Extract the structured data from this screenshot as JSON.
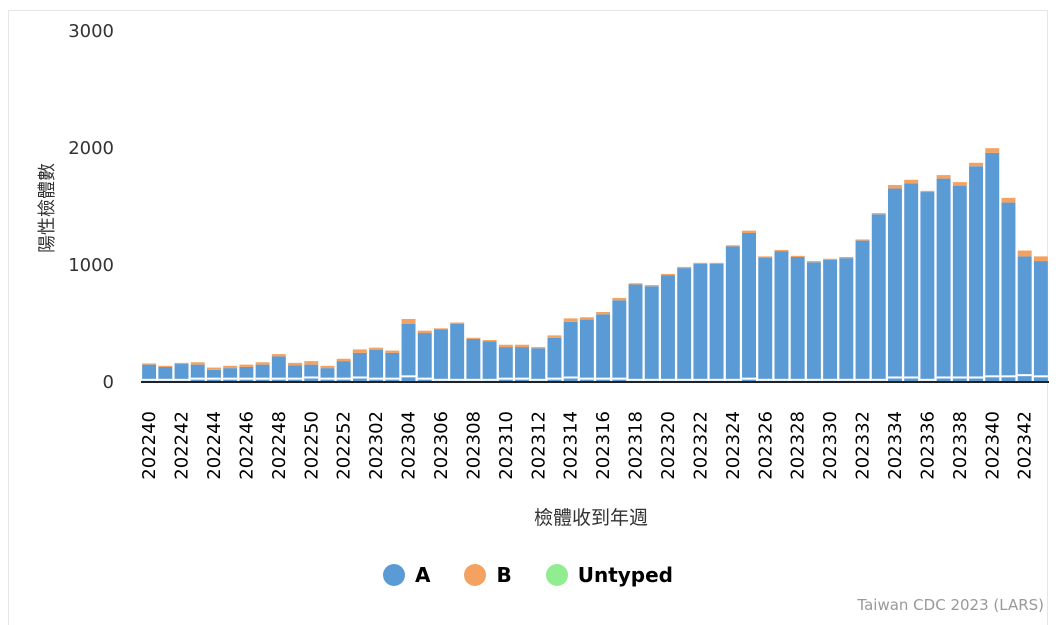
{
  "chart_data": {
    "type": "bar",
    "stacked": true,
    "title": "",
    "xlabel": "檢體收到年週",
    "ylabel": "陽性檢體數",
    "ylim": [
      0,
      3000
    ],
    "yticks": [
      0,
      1000,
      2000,
      3000
    ],
    "legend_position": "bottom-center",
    "credit": "Taiwan CDC 2023 (LARS)",
    "colors": {
      "A": "#5b9bd5",
      "B": "#f4a261",
      "Untyped": "#90ee90"
    },
    "categories": [
      "202240",
      "202241",
      "202242",
      "202243",
      "202244",
      "202245",
      "202246",
      "202247",
      "202248",
      "202249",
      "202250",
      "202251",
      "202252",
      "202301",
      "202302",
      "202303",
      "202304",
      "202305",
      "202306",
      "202307",
      "202308",
      "202309",
      "202310",
      "202311",
      "202312",
      "202313",
      "202314",
      "202315",
      "202316",
      "202317",
      "202318",
      "202319",
      "202320",
      "202321",
      "202322",
      "202323",
      "202324",
      "202325",
      "202326",
      "202327",
      "202328",
      "202329",
      "202330",
      "202331",
      "202332",
      "202333",
      "202334",
      "202335",
      "202336",
      "202337",
      "202338",
      "202339",
      "202340",
      "202341",
      "202342",
      "202343"
    ],
    "tick_labels": [
      "202240",
      "202242",
      "202244",
      "202246",
      "202248",
      "202250",
      "202252",
      "202302",
      "202304",
      "202306",
      "202308",
      "202310",
      "202312",
      "202314",
      "202316",
      "202318",
      "202320",
      "202322",
      "202324",
      "202326",
      "202328",
      "202330",
      "202332",
      "202334",
      "202336",
      "202338",
      "202340",
      "202342"
    ],
    "series": [
      {
        "name": "A",
        "values": [
          140,
          120,
          145,
          140,
          95,
          110,
          120,
          140,
          210,
          135,
          140,
          110,
          170,
          240,
          265,
          240,
          490,
          410,
          440,
          490,
          360,
          340,
          290,
          290,
          280,
          370,
          505,
          525,
          570,
          690,
          825,
          810,
          905,
          965,
          1000,
          1000,
          1150,
          1265,
          1055,
          1110,
          1060,
          1015,
          1035,
          1050,
          1200,
          1425,
          1645,
          1690,
          1615,
          1730,
          1670,
          1835,
          1950,
          1525,
          1065,
          1025
        ]
      },
      {
        "name": "B",
        "values": [
          10,
          10,
          10,
          20,
          20,
          20,
          20,
          20,
          20,
          20,
          30,
          20,
          20,
          30,
          20,
          20,
          40,
          20,
          10,
          10,
          10,
          10,
          20,
          20,
          10,
          20,
          30,
          20,
          20,
          20,
          10,
          10,
          10,
          10,
          10,
          10,
          10,
          20,
          10,
          10,
          10,
          10,
          10,
          10,
          10,
          10,
          30,
          30,
          10,
          30,
          30,
          30,
          40,
          40,
          50,
          40
        ]
      },
      {
        "name": "Untyped",
        "values": [
          0,
          0,
          0,
          0,
          0,
          0,
          0,
          0,
          0,
          0,
          0,
          0,
          0,
          0,
          0,
          0,
          0,
          0,
          0,
          0,
          0,
          0,
          0,
          0,
          0,
          0,
          0,
          0,
          0,
          0,
          0,
          0,
          0,
          0,
          0,
          0,
          0,
          0,
          0,
          0,
          0,
          0,
          0,
          0,
          0,
          0,
          0,
          0,
          0,
          0,
          0,
          0,
          0,
          0,
          0,
          0
        ]
      }
    ]
  }
}
